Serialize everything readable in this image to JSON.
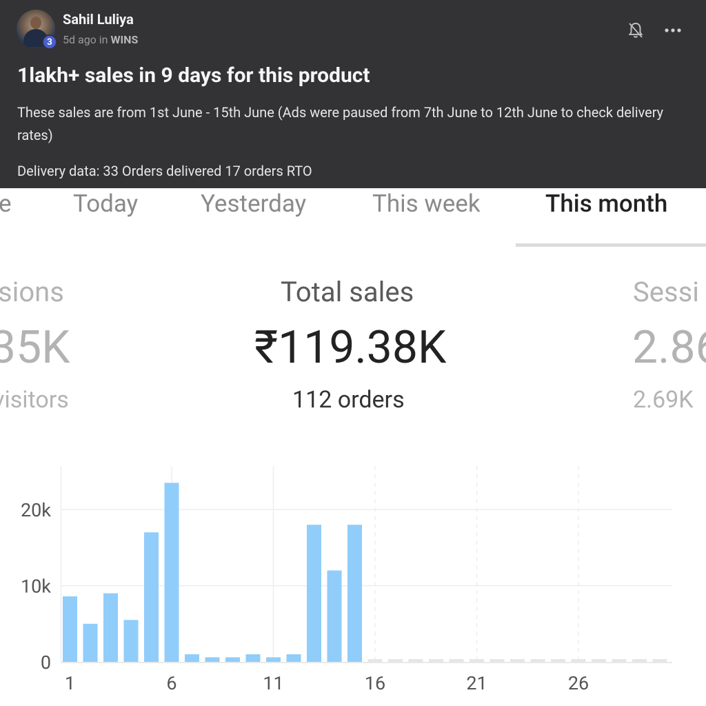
{
  "post": {
    "author": "Sahil Luliya",
    "level": "3",
    "time": "5d ago",
    "in_word": "in",
    "group": "WINS",
    "title": "1lakh+ sales in 9 days for this product",
    "body": "These sales are from 1st June - 15th June (Ads were paused from 7th June to 12th June to check delivery rates)",
    "delivery": "Delivery data: 33 Orders delivered 17 orders RTO",
    "icons": {
      "bell": "bell-off-icon",
      "more": "more-horizontal-icon"
    }
  },
  "tabs": [
    {
      "label": "e",
      "active": false
    },
    {
      "label": "Today",
      "active": false
    },
    {
      "label": "Yesterday",
      "active": false
    },
    {
      "label": "This week",
      "active": false
    },
    {
      "label": "This month",
      "active": true
    }
  ],
  "metrics": {
    "left": {
      "label": "sions",
      "value": "35K",
      "sub": "visitors"
    },
    "center": {
      "label": "Total sales",
      "value": "₹119.38K",
      "sub": "112 orders"
    },
    "right": {
      "label": "Sessi",
      "value": "2.86",
      "sub": "2.69K"
    }
  },
  "colors": {
    "bar": "#90cdfa",
    "future_bar": "#e6e6e6",
    "grid": "#eeeeee",
    "post_bg": "#333335"
  },
  "chart_data": {
    "type": "bar",
    "x_tick_labels": [
      "1",
      "6",
      "11",
      "16",
      "21",
      "26"
    ],
    "y_tick_labels": [
      "0",
      "10k",
      "20k"
    ],
    "ylim": [
      0,
      25000
    ],
    "days": [
      1,
      2,
      3,
      4,
      5,
      6,
      7,
      8,
      9,
      10,
      11,
      12,
      13,
      14,
      15,
      16,
      17,
      18,
      19,
      20,
      21,
      22,
      23,
      24,
      25,
      26,
      27,
      28,
      29,
      30
    ],
    "values": [
      8600,
      5000,
      9000,
      5500,
      17000,
      23500,
      1000,
      600,
      600,
      1000,
      600,
      1000,
      18000,
      12000,
      18000,
      0,
      0,
      0,
      0,
      0,
      0,
      0,
      0,
      0,
      0,
      0,
      0,
      0,
      0,
      0
    ],
    "days_with_data": 15
  }
}
